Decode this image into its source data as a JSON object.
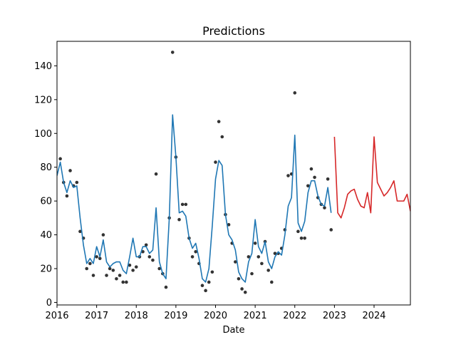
{
  "chart_data": {
    "type": "line",
    "title": "Predictions",
    "xlabel": "Date",
    "ylabel": "",
    "xlim": [
      "2016-01",
      "2024-12"
    ],
    "ylim": [
      -1.5,
      154.5
    ],
    "x_ticks": [
      "2016",
      "2017",
      "2018",
      "2019",
      "2020",
      "2021",
      "2022",
      "2023",
      "2024"
    ],
    "y_ticks": [
      0,
      20,
      40,
      60,
      80,
      100,
      120,
      140
    ],
    "grid": false,
    "legend": "none",
    "series": [
      {
        "kind": "scatter",
        "color": "#333333",
        "start": "2016-02",
        "values": [
          85,
          71,
          63,
          78,
          69,
          71,
          42,
          38,
          20,
          23,
          16,
          27,
          26,
          40,
          16,
          20,
          19,
          14,
          16,
          12,
          12,
          22,
          19,
          21,
          27,
          30,
          34,
          27,
          25,
          76,
          20,
          17,
          9,
          50,
          148,
          86,
          49,
          58,
          58,
          38,
          27,
          30,
          23,
          10,
          7,
          12,
          18,
          83,
          107,
          98,
          52,
          46,
          35,
          24,
          14,
          8,
          6,
          27,
          17,
          35,
          27,
          23,
          36,
          19,
          12,
          29,
          29,
          32,
          43,
          75,
          76,
          124,
          42,
          38,
          38,
          69,
          79,
          74,
          62,
          58,
          56,
          73,
          43
        ]
      },
      {
        "kind": "line",
        "color": "#1f77b4",
        "start": "2016-01",
        "values": [
          75,
          83,
          71,
          65,
          72,
          68,
          69,
          50,
          34,
          23,
          26,
          23,
          33,
          27,
          37,
          24,
          21,
          23,
          24,
          24,
          19,
          17,
          27,
          38,
          27,
          27,
          33,
          33,
          29,
          31,
          56,
          24,
          17,
          14,
          50,
          111,
          86,
          53,
          54,
          51,
          38,
          32,
          35,
          26,
          14,
          12,
          20,
          45,
          73,
          84,
          81,
          52,
          40,
          37,
          31,
          18,
          14,
          12,
          24,
          29,
          49,
          33,
          29,
          36,
          24,
          20,
          27,
          30,
          28,
          40,
          57,
          62,
          99,
          47,
          42,
          48,
          65,
          72,
          72,
          63,
          58,
          57,
          68,
          53
        ]
      },
      {
        "kind": "line",
        "color": "#d62728",
        "start": "2023-01",
        "values": [
          98,
          53,
          50,
          56,
          64,
          66,
          67,
          61,
          57,
          56,
          65,
          53,
          98,
          71,
          67,
          63,
          65,
          68,
          72,
          60,
          60,
          60,
          64,
          54
        ]
      }
    ]
  }
}
